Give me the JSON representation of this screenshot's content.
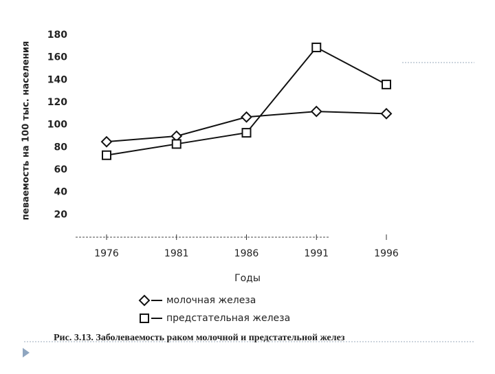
{
  "chart_data": {
    "type": "line",
    "y_label": "певаемость на 100 тыс. населения",
    "x_label": "Годы",
    "caption": "Рис. 3.13. Заболеваемость раком молочной и предстательной желез",
    "categories": [
      "1976",
      "1981",
      "1986",
      "1991",
      "1996"
    ],
    "series": [
      {
        "name": "молочная железа",
        "color": "#111111",
        "marker": "diamond",
        "values": [
          85,
          90,
          107,
          112,
          110
        ]
      },
      {
        "name": "предстательная железа",
        "color": "#111111",
        "marker": "square",
        "values": [
          73,
          83,
          93,
          169,
          136
        ]
      }
    ],
    "ylim": [
      0,
      180
    ],
    "yticks": [
      20,
      40,
      60,
      80,
      100,
      120,
      140,
      160,
      180
    ]
  }
}
